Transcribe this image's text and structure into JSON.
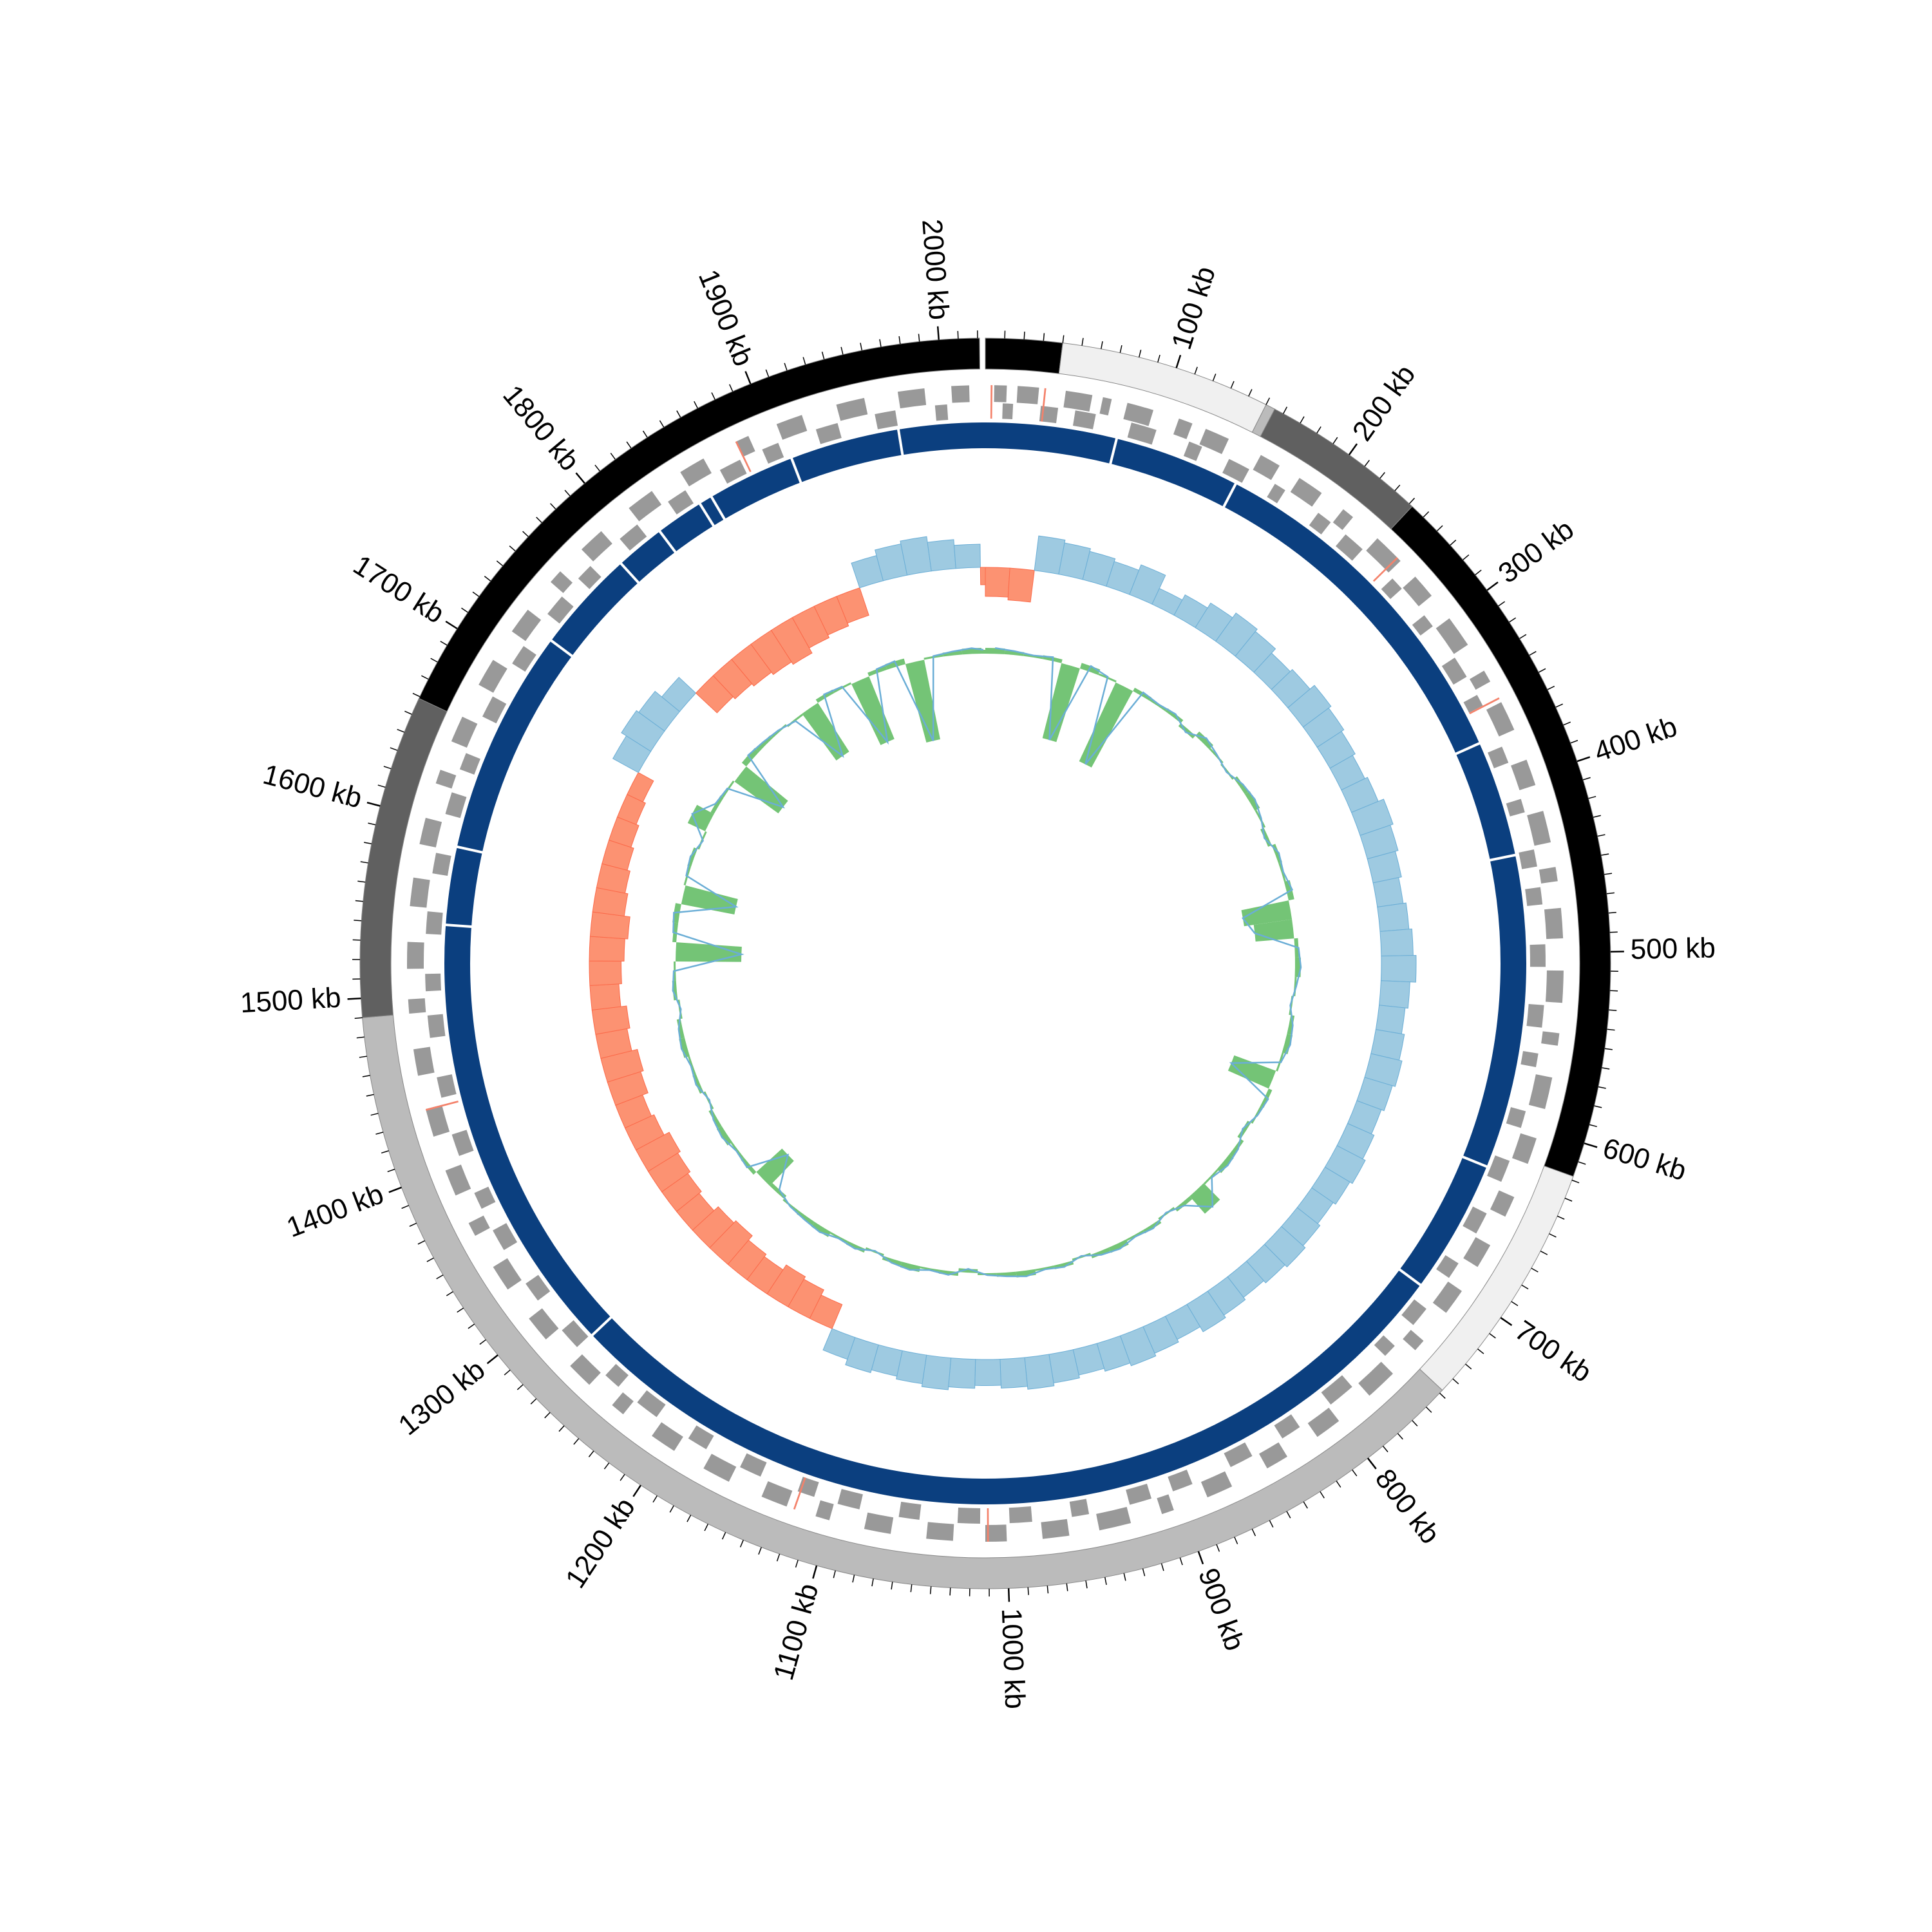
{
  "chart_data": {
    "type": "circular",
    "xlim": [
      0,
      2024
    ],
    "xticks": [
      {
        "value": 100,
        "label": "100 kb"
      },
      {
        "value": 200,
        "label": "200 kb"
      },
      {
        "value": 300,
        "label": "300 kb"
      },
      {
        "value": 400,
        "label": "400 kb"
      },
      {
        "value": 500,
        "label": "500 kb"
      },
      {
        "value": 600,
        "label": "600 kb"
      },
      {
        "value": 700,
        "label": "700 kb"
      },
      {
        "value": 800,
        "label": "800 kb"
      },
      {
        "value": 900,
        "label": "900 kb"
      },
      {
        "value": 1000,
        "label": "1000 kb"
      },
      {
        "value": 1100,
        "label": "1100 kb"
      },
      {
        "value": 1200,
        "label": "1200 kb"
      },
      {
        "value": 1300,
        "label": "1300 kb"
      },
      {
        "value": 1400,
        "label": "1400 kb"
      },
      {
        "value": 1500,
        "label": "1500 kb"
      },
      {
        "value": 1600,
        "label": "1600 kb"
      },
      {
        "value": 1700,
        "label": "1700 kb"
      },
      {
        "value": 1800,
        "label": "1800 kb"
      },
      {
        "value": 1900,
        "label": "1900 kb"
      },
      {
        "value": 2000,
        "label": "2000 kb"
      }
    ],
    "minor_ticks": [
      10,
      20,
      30,
      40,
      50,
      60,
      70,
      80,
      90,
      110,
      120,
      130,
      140,
      150,
      160,
      170,
      180,
      190,
      210,
      220,
      230,
      240,
      250,
      260,
      270,
      280,
      290,
      310,
      320,
      330,
      340,
      350,
      360,
      370,
      380,
      390,
      410,
      420,
      430,
      440,
      450,
      460,
      470,
      480,
      490,
      510,
      520,
      530,
      540,
      550,
      560,
      570,
      580,
      590,
      610,
      620,
      630,
      640,
      650,
      660,
      670,
      680,
      690,
      710,
      720,
      730,
      740,
      750,
      760,
      770,
      780,
      790,
      810,
      820,
      830,
      840,
      850,
      860,
      870,
      880,
      890,
      910,
      920,
      930,
      940,
      950,
      960,
      970,
      980,
      990,
      1010,
      1020,
      1030,
      1040,
      1050,
      1060,
      1070,
      1080,
      1090,
      1110,
      1120,
      1130,
      1140,
      1150,
      1160,
      1170,
      1180,
      1190,
      1210,
      1220,
      1230,
      1240,
      1250,
      1260,
      1270,
      1280,
      1290,
      1310,
      1320,
      1330,
      1340,
      1350,
      1360,
      1370,
      1380,
      1390,
      1410,
      1420,
      1430,
      1440,
      1450,
      1460,
      1470,
      1480,
      1490,
      1510,
      1520,
      1530,
      1540,
      1550,
      1560,
      1570,
      1580,
      1590,
      1610,
      1620,
      1630,
      1640,
      1650,
      1660,
      1670,
      1680,
      1690,
      1710,
      1720,
      1730,
      1740,
      1750,
      1760,
      1770,
      1780,
      1790,
      1810,
      1820,
      1830,
      1840,
      1850,
      1860,
      1870,
      1880,
      1890,
      1910,
      1920,
      1930,
      1940,
      1950,
      1960,
      1970,
      1980,
      1990,
      2010,
      2020
    ],
    "contigs": [
      {
        "start": 0,
        "end": 40,
        "color": "#000000"
      },
      {
        "start": 40,
        "end": 150,
        "color": "#f0f0f0"
      },
      {
        "start": 150,
        "end": 155,
        "color": "#bbbbbb"
      },
      {
        "start": 155,
        "end": 242,
        "color": "#606060"
      },
      {
        "start": 242,
        "end": 618,
        "color": "#000000"
      },
      {
        "start": 618,
        "end": 748,
        "color": "#f0f0f0"
      },
      {
        "start": 748,
        "end": 1490,
        "color": "#bbbbbb"
      },
      {
        "start": 1490,
        "end": 1659,
        "color": "#606060"
      },
      {
        "start": 1659,
        "end": 2021,
        "color": "#000000"
      }
    ],
    "genes": {
      "color": "#999999",
      "rna_color": "#f4826b",
      "forward": [
        [
          5,
          12
        ],
        [
          18,
          30
        ],
        [
          45,
          60
        ],
        [
          66,
          71
        ],
        [
          80,
          95
        ],
        [
          110,
          118
        ],
        [
          126,
          140
        ],
        [
          160,
          172
        ],
        [
          185,
          200
        ],
        [
          215,
          222
        ],
        [
          240,
          258
        ],
        [
          270,
          284
        ],
        [
          300,
          318
        ],
        [
          335,
          342
        ],
        [
          355,
          372
        ],
        [
          390,
          405
        ],
        [
          420,
          438
        ],
        [
          452,
          460
        ],
        [
          475,
          492
        ],
        [
          510,
          528
        ],
        [
          545,
          552
        ],
        [
          570,
          588
        ],
        [
          605,
          620
        ],
        [
          640,
          652
        ],
        [
          670,
          684
        ],
        [
          700,
          715
        ],
        [
          735,
          742
        ],
        [
          760,
          778
        ],
        [
          800,
          815
        ],
        [
          835,
          848
        ],
        [
          870,
          885
        ],
        [
          905,
          912
        ],
        [
          930,
          948
        ],
        [
          965,
          980
        ],
        [
          1000,
          1012
        ],
        [
          1030,
          1045
        ],
        [
          1065,
          1080
        ],
        [
          1100,
          1108
        ],
        [
          1125,
          1140
        ],
        [
          1160,
          1176
        ],
        [
          1195,
          1210
        ],
        [
          1230,
          1238
        ],
        [
          1255,
          1270
        ],
        [
          1290,
          1305
        ],
        [
          1325,
          1340
        ],
        [
          1360,
          1368
        ],
        [
          1385,
          1400
        ],
        [
          1420,
          1436
        ],
        [
          1455,
          1470
        ],
        [
          1490,
          1498
        ],
        [
          1515,
          1530
        ],
        [
          1550,
          1566
        ],
        [
          1585,
          1600
        ],
        [
          1620,
          1628
        ],
        [
          1645,
          1660
        ],
        [
          1680,
          1696
        ],
        [
          1715,
          1730
        ],
        [
          1750,
          1758
        ],
        [
          1775,
          1790
        ],
        [
          1810,
          1826
        ],
        [
          1845,
          1860
        ],
        [
          1880,
          1888
        ],
        [
          1905,
          1920
        ],
        [
          1940,
          1956
        ],
        [
          1975,
          1990
        ],
        [
          2005,
          2015
        ]
      ],
      "reverse": [
        [
          10,
          16
        ],
        [
          32,
          42
        ],
        [
          52,
          64
        ],
        [
          85,
          100
        ],
        [
          120,
          128
        ],
        [
          145,
          158
        ],
        [
          175,
          182
        ],
        [
          205,
          214
        ],
        [
          225,
          238
        ],
        [
          262,
          270
        ],
        [
          290,
          298
        ],
        [
          320,
          333
        ],
        [
          345,
          352
        ],
        [
          378,
          388
        ],
        [
          410,
          418
        ],
        [
          440,
          450
        ],
        [
          462,
          472
        ],
        [
          495,
          508
        ],
        [
          530,
          543
        ],
        [
          558,
          566
        ],
        [
          592,
          602
        ],
        [
          622,
          635
        ],
        [
          655,
          668
        ],
        [
          688,
          698
        ],
        [
          720,
          732
        ],
        [
          748,
          756
        ],
        [
          782,
          798
        ],
        [
          820,
          832
        ],
        [
          852,
          866
        ],
        [
          890,
          902
        ],
        [
          915,
          928
        ],
        [
          952,
          962
        ],
        [
          985,
          998
        ],
        [
          1015,
          1028
        ],
        [
          1050,
          1062
        ],
        [
          1085,
          1098
        ],
        [
          1112,
          1122
        ],
        [
          1145,
          1158
        ],
        [
          1180,
          1192
        ],
        [
          1214,
          1228
        ],
        [
          1242,
          1252
        ],
        [
          1275,
          1288
        ],
        [
          1310,
          1322
        ],
        [
          1345,
          1358
        ],
        [
          1372,
          1382
        ],
        [
          1405,
          1418
        ],
        [
          1440,
          1452
        ],
        [
          1475,
          1488
        ],
        [
          1502,
          1512
        ],
        [
          1535,
          1548
        ],
        [
          1570,
          1582
        ],
        [
          1605,
          1618
        ],
        [
          1632,
          1642
        ],
        [
          1665,
          1678
        ],
        [
          1700,
          1712
        ],
        [
          1735,
          1748
        ],
        [
          1762,
          1772
        ],
        [
          1795,
          1808
        ],
        [
          1830,
          1842
        ],
        [
          1865,
          1878
        ],
        [
          1892,
          1902
        ],
        [
          1925,
          1938
        ],
        [
          1960,
          1972
        ],
        [
          1995,
          2002
        ]
      ],
      "rna": [
        [
          3,
          4
        ],
        [
          33,
          34
        ],
        [
          255,
          256
        ],
        [
          352,
          353
        ],
        [
          1010,
          1011
        ],
        [
          1120,
          1121
        ],
        [
          1435,
          1436
        ],
        [
          1880,
          1881
        ]
      ]
    },
    "ring": {
      "color": "#0b3f7f",
      "breaks": [
        79,
        155,
        371,
        441,
        630,
        711,
        1274,
        1541,
        1588,
        1724,
        1786,
        1816,
        1845,
        1853,
        1906,
        1972
      ]
    },
    "x": [
      0,
      20,
      40,
      60,
      80,
      100,
      120,
      140,
      160,
      180,
      200,
      220,
      240,
      260,
      280,
      300,
      320,
      340,
      360,
      380,
      400,
      420,
      440,
      460,
      480,
      500,
      520,
      540,
      560,
      580,
      600,
      620,
      640,
      660,
      680,
      700,
      720,
      740,
      760,
      780,
      800,
      820,
      840,
      860,
      880,
      900,
      920,
      940,
      960,
      980,
      1000,
      1020,
      1040,
      1060,
      1080,
      1100,
      1120,
      1140,
      1160,
      1180,
      1200,
      1220,
      1240,
      1260,
      1280,
      1300,
      1320,
      1340,
      1360,
      1380,
      1400,
      1420,
      1440,
      1460,
      1480,
      1500,
      1520,
      1540,
      1560,
      1580,
      1600,
      1620,
      1640,
      1660,
      1680,
      1700,
      1720,
      1740,
      1760,
      1780,
      1800,
      1820,
      1840,
      1860,
      1880,
      1900,
      1920,
      1940,
      1960,
      1980,
      2000,
      2020
    ],
    "gc_skew": {
      "positive_color": "#9ecae1",
      "negative_color": "#fc9272",
      "ylim": [
        -1,
        1
      ],
      "values": [
        -0.5,
        -0.55,
        0.6,
        0.55,
        0.5,
        0.45,
        0.55,
        0.3,
        0.4,
        0.5,
        0.6,
        0.55,
        0.45,
        0.5,
        0.6,
        0.55,
        0.5,
        0.45,
        0.5,
        0.6,
        0.55,
        0.5,
        0.45,
        0.5,
        0.55,
        0.6,
        0.5,
        0.45,
        0.5,
        0.55,
        0.5,
        0.45,
        0.5,
        0.55,
        0.5,
        0.45,
        0.5,
        0.55,
        0.5,
        0.45,
        0.5,
        0.55,
        0.45,
        0.5,
        0.55,
        0.5,
        0.45,
        0.5,
        0.55,
        0.5,
        0.45,
        0.5,
        0.55,
        0.5,
        0.45,
        0.5,
        0.4,
        -0.45,
        -0.55,
        -0.6,
        -0.5,
        -0.55,
        -0.65,
        -0.6,
        -0.5,
        -0.55,
        -0.6,
        -0.65,
        -0.55,
        -0.5,
        -0.6,
        -0.65,
        -0.55,
        -0.6,
        -0.5,
        -0.55,
        -0.6,
        -0.65,
        -0.55,
        -0.5,
        -0.45,
        -0.4,
        -0.35,
        -0.3,
        0.5,
        0.6,
        0.55,
        0.4,
        -0.5,
        -0.55,
        -0.6,
        -0.65,
        -0.7,
        -0.6,
        -0.55,
        -0.5,
        0.45,
        0.55,
        0.6,
        0.5,
        0.4,
        -0.3
      ]
    },
    "gc_content": {
      "fill_color": "#74c476",
      "line_color": "#6baed6",
      "ylim": [
        -5,
        5
      ],
      "values": [
        0.3,
        0.2,
        0.1,
        0.2,
        -4.0,
        0.3,
        0.1,
        -4.5,
        0.2,
        0.1,
        0.2,
        -0.2,
        0.3,
        0.1,
        -0.1,
        0.2,
        0.3,
        0.1,
        -0.2,
        0.2,
        0.1,
        0.3,
        -2.5,
        -2.0,
        0.2,
        0.3,
        0.1,
        -0.1,
        0.2,
        0.3,
        0.1,
        -2.3,
        0.2,
        0.1,
        -0.2,
        0.2,
        0.3,
        0.1,
        1.2,
        0.2,
        -0.1,
        0.2,
        0.1,
        0.3,
        0.2,
        -0.1,
        0.2,
        0.1,
        0.3,
        0.2,
        0.1,
        -0.2,
        0.2,
        0.1,
        0.3,
        0.2,
        -0.1,
        0.2,
        0.1,
        0.3,
        0.2,
        0.1,
        -0.2,
        -1.8,
        0.2,
        0.1,
        0.3,
        0.2,
        -0.1,
        0.2,
        0.1,
        0.3,
        0.2,
        -0.1,
        0.2,
        0.1,
        -3.4,
        0.2,
        0.3,
        -2.8,
        0.1,
        0.2,
        -0.1,
        1.0,
        0.2,
        0.1,
        -2.8,
        0.3,
        0.2,
        0.1,
        -0.1,
        -3.0,
        0.2,
        0.1,
        -3.5,
        0.2,
        0.3,
        -4.2,
        0.1,
        0.2,
        0.3,
        0.2
      ]
    }
  }
}
